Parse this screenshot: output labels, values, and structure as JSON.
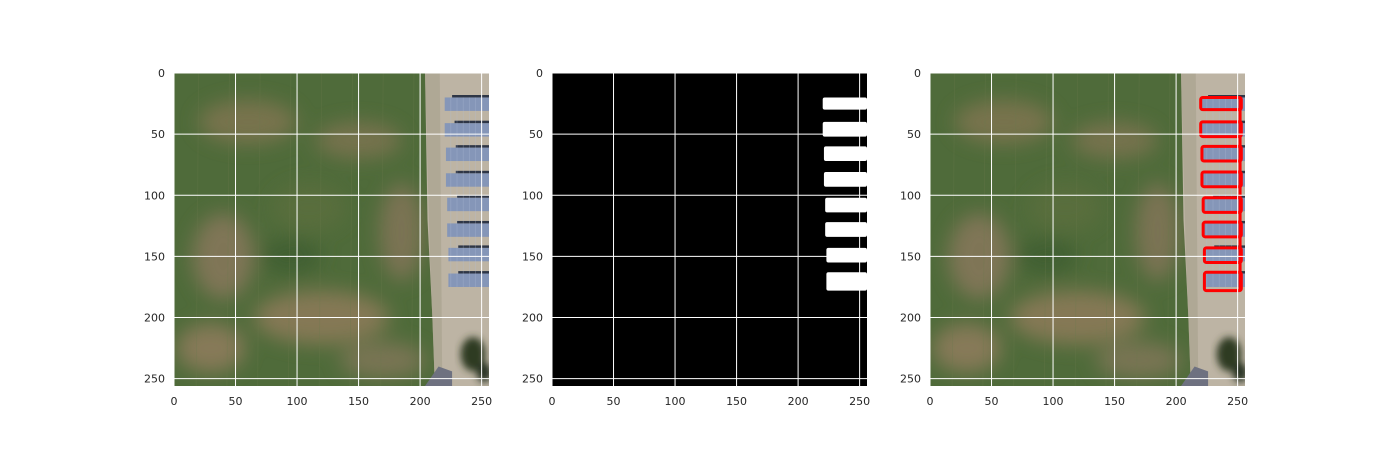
{
  "chart_data": [
    {
      "type": "image",
      "content": "aerial photo: farmland with solar panel rows and gravel pad on right",
      "xlim": [
        0,
        256
      ],
      "ylim": [
        256,
        0
      ],
      "xticks": [
        0,
        50,
        100,
        150,
        200,
        250
      ],
      "yticks": [
        0,
        50,
        100,
        150,
        200,
        250
      ],
      "grid": true,
      "xlabel": "",
      "ylabel": "",
      "title": ""
    },
    {
      "type": "image",
      "content": "binary segmentation mask: white solar panel rows on black background",
      "xlim": [
        0,
        256
      ],
      "ylim": [
        256,
        0
      ],
      "xticks": [
        0,
        50,
        100,
        150,
        200,
        250
      ],
      "yticks": [
        0,
        50,
        100,
        150,
        200,
        250
      ],
      "grid": true,
      "xlabel": "",
      "ylabel": "",
      "title": "",
      "mask_rows": [
        {
          "x0": 220,
          "x1": 256,
          "y0": 20,
          "y1": 30
        },
        {
          "x0": 220,
          "x1": 256,
          "y0": 40,
          "y1": 52
        },
        {
          "x0": 221,
          "x1": 256,
          "y0": 60,
          "y1": 72
        },
        {
          "x0": 221,
          "x1": 256,
          "y0": 81,
          "y1": 93
        },
        {
          "x0": 222,
          "x1": 256,
          "y0": 102,
          "y1": 114
        },
        {
          "x0": 222,
          "x1": 256,
          "y0": 122,
          "y1": 134
        },
        {
          "x0": 223,
          "x1": 256,
          "y0": 143,
          "y1": 155
        },
        {
          "x0": 223,
          "x1": 256,
          "y0": 163,
          "y1": 178
        }
      ]
    },
    {
      "type": "image",
      "content": "aerial photo with red contour overlay outlining detected solar panel rows",
      "xlim": [
        0,
        256
      ],
      "ylim": [
        256,
        0
      ],
      "xticks": [
        0,
        50,
        100,
        150,
        200,
        250
      ],
      "yticks": [
        0,
        50,
        100,
        150,
        200,
        250
      ],
      "grid": true,
      "xlabel": "",
      "ylabel": "",
      "title": "",
      "overlay_color": "#ff0000"
    }
  ],
  "colors": {
    "grass": "#4f6b3a",
    "dirt": "#8d7b58",
    "gravel": "#bdb4a4",
    "panel": "#8596b8",
    "panel_gap": "#2e3646",
    "contour": "#ff0000",
    "grid": "#ffffff",
    "mask_bg": "#000000",
    "mask_fg": "#ffffff"
  }
}
